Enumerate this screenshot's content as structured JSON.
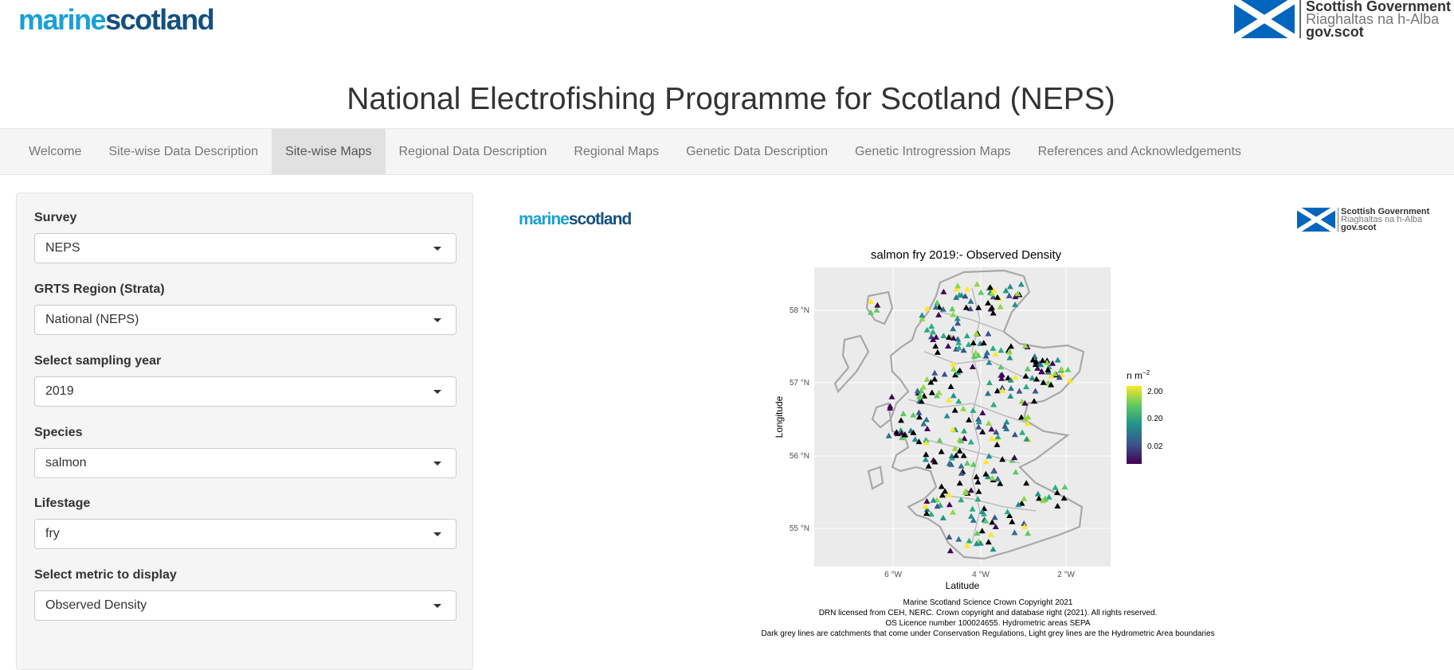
{
  "header": {
    "logo_left_a": "marine",
    "logo_left_b": "scotland",
    "gov_line1": "Scottish Government",
    "gov_line2": "Riaghaltas na h-Alba",
    "gov_line3": "gov.scot"
  },
  "app_title": "National Electrofishing Programme for Scotland (NEPS)",
  "nav": {
    "tabs": [
      {
        "label": "Welcome"
      },
      {
        "label": "Site-wise Data Description"
      },
      {
        "label": "Site-wise Maps",
        "active": true
      },
      {
        "label": "Regional Data Description"
      },
      {
        "label": "Regional Maps"
      },
      {
        "label": "Genetic Data Description"
      },
      {
        "label": "Genetic Introgression Maps"
      },
      {
        "label": "References and Acknowledgements"
      }
    ]
  },
  "sidebar": {
    "fields": [
      {
        "label": "Survey",
        "value": "NEPS"
      },
      {
        "label": "GRTS Region (Strata)",
        "value": "National (NEPS)"
      },
      {
        "label": "Select sampling year",
        "value": "2019"
      },
      {
        "label": "Species",
        "value": "salmon"
      },
      {
        "label": "Lifestage",
        "value": "fry"
      },
      {
        "label": "Select metric to display",
        "value": "Observed Density"
      }
    ]
  },
  "map": {
    "title": "salmon fry 2019:- Observed Density",
    "xlabel": "Latitude",
    "ylabel": "Longitude",
    "yticks": [
      "58 °N",
      "57 °N",
      "56 °N",
      "55 °N"
    ],
    "xticks": [
      "6 °W",
      "4 °W",
      "2 °W"
    ],
    "legend_title": "n m",
    "legend_exp": "−2",
    "legend_ticks": [
      "2.00",
      "0.20",
      "0.02"
    ],
    "credits": [
      "Marine Scotland Science Crown Copyright 2021",
      "DRN licensed from CEH, NERC. Crown copyright and database right (2021). All rights reserved.",
      "OS Licence number 100024655.  Hydrometric areas SEPA",
      "Dark grey lines are catchments that come under Conservation Regulations, Light grey lines are the Hydrometric Area boundaries"
    ]
  },
  "colors": {
    "accent_light": "#1aa0d8",
    "accent_dark": "#14507f",
    "flag_blue": "#0065bd"
  }
}
